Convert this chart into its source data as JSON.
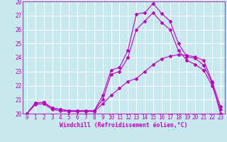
{
  "xlabel": "Windchill (Refroidissement éolien,°C)",
  "bg_color": "#c8e8f0",
  "line_color": "#bb00bb",
  "grid_color": "#ffffff",
  "x_values": [
    0,
    1,
    2,
    3,
    4,
    5,
    6,
    7,
    8,
    9,
    10,
    11,
    12,
    13,
    14,
    15,
    16,
    17,
    18,
    19,
    20,
    21,
    22,
    23
  ],
  "line1": [
    20.0,
    20.75,
    20.8,
    20.4,
    20.3,
    20.2,
    20.2,
    20.2,
    20.2,
    21.3,
    23.1,
    23.3,
    24.5,
    27.1,
    27.2,
    27.85,
    27.15,
    26.6,
    25.0,
    24.05,
    23.95,
    23.45,
    22.2,
    20.0
  ],
  "line2": [
    20.0,
    20.75,
    20.8,
    20.4,
    20.3,
    20.2,
    20.2,
    20.2,
    20.2,
    21.0,
    22.8,
    23.0,
    24.0,
    26.0,
    26.6,
    27.2,
    26.5,
    26.0,
    24.5,
    23.8,
    23.5,
    23.1,
    22.0,
    20.3
  ],
  "line3": [
    20.0,
    20.65,
    20.7,
    20.3,
    20.2,
    20.15,
    20.15,
    20.15,
    20.15,
    20.7,
    21.3,
    21.8,
    22.3,
    22.5,
    23.0,
    23.5,
    23.9,
    24.1,
    24.2,
    24.15,
    24.05,
    23.8,
    22.3,
    20.5
  ],
  "ylim": [
    20,
    28
  ],
  "yticks": [
    20,
    21,
    22,
    23,
    24,
    25,
    26,
    27,
    28
  ],
  "xticks": [
    0,
    1,
    2,
    3,
    4,
    5,
    6,
    7,
    8,
    9,
    10,
    11,
    12,
    13,
    14,
    15,
    16,
    17,
    18,
    19,
    20,
    21,
    22,
    23
  ],
  "tick_fontsize": 5.5,
  "xlabel_fontsize": 5.8,
  "marker_size": 2.0,
  "line_width": 0.8
}
